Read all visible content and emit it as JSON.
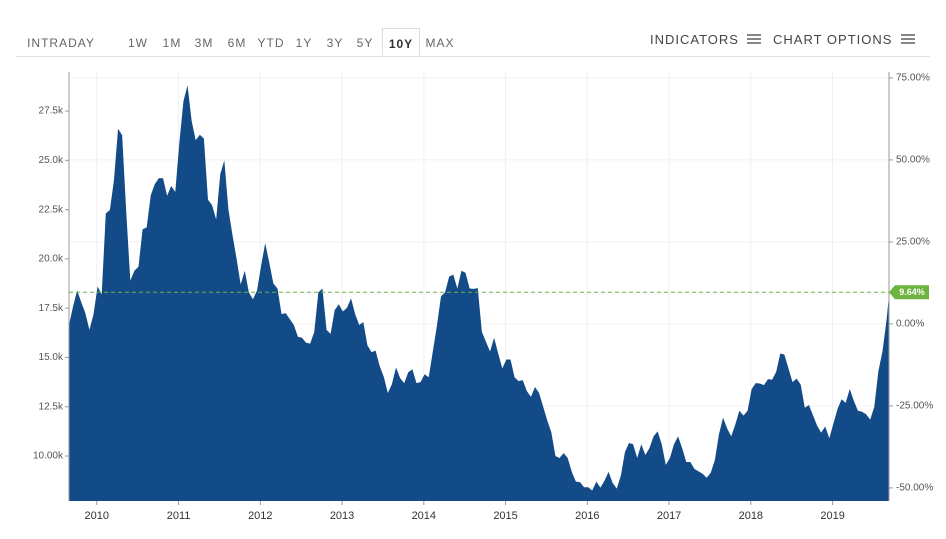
{
  "toolbar": {
    "ranges": [
      "INTRADAY",
      "1W",
      "1M",
      "3M",
      "6M",
      "YTD",
      "1Y",
      "3Y",
      "5Y",
      "10Y",
      "MAX"
    ],
    "selected": 9,
    "indicators": "INDICATORS",
    "chart_options": "CHART OPTIONS"
  },
  "chart_data": {
    "type": "area",
    "color": "#134a88",
    "grid": true,
    "x": [
      2009.66,
      2009.71,
      2009.76,
      2009.81,
      2009.86,
      2009.91,
      2009.96,
      2010.01,
      2010.06,
      2010.11,
      2010.16,
      2010.21,
      2010.26,
      2010.31,
      2010.36,
      2010.41,
      2010.46,
      2010.51,
      2010.56,
      2010.61,
      2010.66,
      2010.71,
      2010.76,
      2010.81,
      2010.86,
      2010.91,
      2010.96,
      2011.01,
      2011.06,
      2011.11,
      2011.16,
      2011.21,
      2011.26,
      2011.31,
      2011.36,
      2011.41,
      2011.46,
      2011.51,
      2011.56,
      2011.61,
      2011.66,
      2011.71,
      2011.76,
      2011.81,
      2011.86,
      2011.91,
      2011.96,
      2012.01,
      2012.06,
      2012.11,
      2012.16,
      2012.21,
      2012.26,
      2012.31,
      2012.36,
      2012.41,
      2012.46,
      2012.51,
      2012.56,
      2012.61,
      2012.66,
      2012.71,
      2012.76,
      2012.81,
      2012.86,
      2012.91,
      2012.96,
      2013.01,
      2013.06,
      2013.11,
      2013.16,
      2013.21,
      2013.26,
      2013.31,
      2013.36,
      2013.41,
      2013.46,
      2013.51,
      2013.56,
      2013.61,
      2013.66,
      2013.71,
      2013.76,
      2013.81,
      2013.86,
      2013.91,
      2013.96,
      2014.01,
      2014.06,
      2014.11,
      2014.16,
      2014.21,
      2014.26,
      2014.31,
      2014.36,
      2014.41,
      2014.46,
      2014.51,
      2014.56,
      2014.61,
      2014.66,
      2014.71,
      2014.76,
      2014.81,
      2014.86,
      2014.91,
      2014.96,
      2015.01,
      2015.06,
      2015.11,
      2015.16,
      2015.21,
      2015.26,
      2015.31,
      2015.36,
      2015.41,
      2015.46,
      2015.51,
      2015.56,
      2015.61,
      2015.66,
      2015.71,
      2015.76,
      2015.81,
      2015.86,
      2015.91,
      2015.96,
      2016.01,
      2016.06,
      2016.11,
      2016.16,
      2016.21,
      2016.26,
      2016.31,
      2016.36,
      2016.41,
      2016.46,
      2016.51,
      2016.56,
      2016.61,
      2016.66,
      2016.71,
      2016.76,
      2016.81,
      2016.86,
      2016.91,
      2016.96,
      2017.01,
      2017.06,
      2017.11,
      2017.16,
      2017.21,
      2017.26,
      2017.31,
      2017.36,
      2017.41,
      2017.46,
      2017.51,
      2017.56,
      2017.61,
      2017.66,
      2017.71,
      2017.76,
      2017.81,
      2017.86,
      2017.91,
      2017.96,
      2018.01,
      2018.06,
      2018.11,
      2018.16,
      2018.21,
      2018.26,
      2018.31,
      2018.36,
      2018.41,
      2018.46,
      2018.51,
      2018.56,
      2018.61,
      2018.66,
      2018.71,
      2018.76,
      2018.81,
      2018.86,
      2018.91,
      2018.96,
      2019.01,
      2019.06,
      2019.11,
      2019.16,
      2019.21,
      2019.26,
      2019.31,
      2019.36,
      2019.41,
      2019.46,
      2019.51,
      2019.56,
      2019.61,
      2019.66,
      2019.69
    ],
    "values": [
      16640,
      17600,
      18400,
      17800,
      17250,
      16400,
      17200,
      18600,
      18200,
      22300,
      22480,
      24000,
      26600,
      26270,
      22400,
      18900,
      19400,
      19600,
      21500,
      21600,
      23230,
      23800,
      24100,
      24090,
      23200,
      23700,
      23400,
      25900,
      28000,
      28800,
      27000,
      26020,
      26300,
      26100,
      23000,
      22730,
      22000,
      24300,
      25000,
      22500,
      21200,
      20000,
      18700,
      19400,
      18300,
      17950,
      18400,
      19650,
      20800,
      19800,
      18750,
      18500,
      17200,
      17250,
      16950,
      16650,
      16050,
      16000,
      15750,
      15700,
      16300,
      18300,
      18500,
      16400,
      16200,
      17400,
      17700,
      17330,
      17520,
      18000,
      17200,
      16650,
      16790,
      15620,
      15270,
      15350,
      14570,
      14020,
      13200,
      13650,
      14500,
      13950,
      13700,
      14250,
      14400,
      13700,
      13750,
      14150,
      14000,
      15300,
      16600,
      18100,
      18300,
      19100,
      19200,
      18500,
      19400,
      19300,
      18500,
      18480,
      18520,
      16300,
      15800,
      15300,
      16000,
      15200,
      14450,
      14900,
      14900,
      14000,
      13800,
      13850,
      13300,
      13000,
      13500,
      13200,
      12500,
      11800,
      11200,
      10000,
      9900,
      10150,
      9900,
      9200,
      8700,
      8680,
      8420,
      8420,
      8250,
      8700,
      8400,
      8750,
      9200,
      8630,
      8350,
      9000,
      10200,
      10660,
      10600,
      9900,
      10600,
      10050,
      10400,
      11000,
      11250,
      10600,
      9550,
      9900,
      10600,
      11000,
      10400,
      9700,
      9700,
      9350,
      9220,
      9100,
      8900,
      9150,
      9800,
      11100,
      11950,
      11400,
      11000,
      11600,
      12300,
      12050,
      12300,
      13400,
      13700,
      13680,
      13600,
      13900,
      13870,
      14270,
      15200,
      15150,
      14450,
      13750,
      13930,
      13620,
      12450,
      12590,
      12070,
      11550,
      11190,
      11500,
      10900,
      11650,
      12380,
      12880,
      12700,
      13400,
      12800,
      12300,
      12250,
      12120,
      11850,
      12500,
      14300,
      15300,
      16900,
      18160
    ],
    "xlim": [
      2009.66,
      2019.69
    ],
    "xticks": [
      2010,
      2011,
      2012,
      2013,
      2014,
      2015,
      2016,
      2017,
      2018,
      2019
    ],
    "ylim": [
      7720,
      29480
    ],
    "yticks": [
      {
        "value": 10000,
        "label": "10.00k"
      },
      {
        "value": 12500,
        "label": "12.5k"
      },
      {
        "value": 15000,
        "label": "15.0k"
      },
      {
        "value": 17500,
        "label": "17.5k"
      },
      {
        "value": 20000,
        "label": "20.0k"
      },
      {
        "value": 22500,
        "label": "22.5k"
      },
      {
        "value": 25000,
        "label": "25.0k"
      },
      {
        "value": 27500,
        "label": "27.5k"
      }
    ],
    "y2lim": [
      -54,
      76.8
    ],
    "y2ticks": [
      {
        "value": 75,
        "label": "75.00%"
      },
      {
        "value": 50,
        "label": "50.00%"
      },
      {
        "value": 25,
        "label": "25.00%"
      },
      {
        "value": 0,
        "label": "0.00%"
      },
      {
        "value": -25,
        "label": "-25.00%"
      },
      {
        "value": -50,
        "label": "-50.00%"
      }
    ],
    "reference_line": {
      "value": 9.64,
      "label": "9.64%",
      "axis": "y2",
      "color": "#6cb33f"
    }
  }
}
